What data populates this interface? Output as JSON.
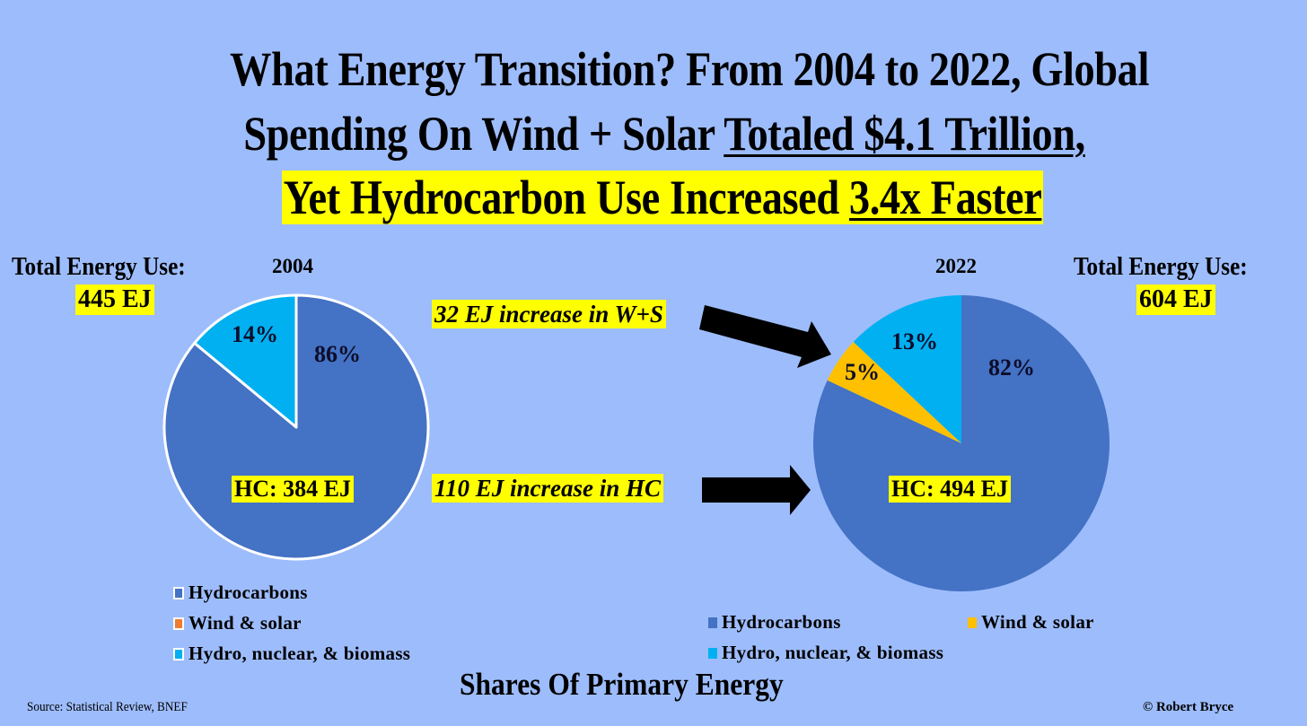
{
  "title": {
    "line1": "What Energy Transition? From 2004 to 2022, Global",
    "line2_plain": "Spending On Wind + Solar ",
    "line2_underlined": "Totaled $4.1 Trillion,",
    "line3_plain": "Yet Hydrocarbon Use Increased ",
    "line3_underlined": "3.4x Faster"
  },
  "left_total": {
    "label": "Total Energy Use:",
    "value": "445 EJ"
  },
  "right_total": {
    "label": "Total Energy Use:",
    "value": "604 EJ"
  },
  "annotations": {
    "ws_increase": "32 EJ increase in W+S",
    "hc_increase": "110 EJ increase in HC"
  },
  "subtitle": "Shares Of Primary Energy",
  "source": "Source: Statistical Review, BNEF",
  "copyright": "© Robert Bryce",
  "colors": {
    "background": "#9dbcfb",
    "hydrocarbons": "#4472c4",
    "wind_solar_2004_legend": "#ed7d31",
    "wind_solar": "#ffc000",
    "hydro_nuclear_biomass": "#00b0f0",
    "highlight": "#ffff00"
  },
  "chart_data": [
    {
      "type": "pie",
      "title": "2004",
      "total_label": "445 EJ",
      "inner_label": "HC: 384 EJ",
      "slices": [
        {
          "name": "Hydrocarbons",
          "value": 86,
          "label": "86%"
        },
        {
          "name": "Wind & solar",
          "value": 0,
          "label": ""
        },
        {
          "name": "Hydro, nuclear, & biomass",
          "value": 14,
          "label": "14%"
        }
      ],
      "legend": [
        "Hydrocarbons",
        "Wind & solar",
        "Hydro, nuclear, & biomass"
      ],
      "legend_placement": "bottom"
    },
    {
      "type": "pie",
      "title": "2022",
      "total_label": "604 EJ",
      "inner_label": "HC: 494 EJ",
      "slices": [
        {
          "name": "Hydrocarbons",
          "value": 82,
          "label": "82%"
        },
        {
          "name": "Wind & solar",
          "value": 5,
          "label": "5%"
        },
        {
          "name": "Hydro, nuclear, & biomass",
          "value": 13,
          "label": "13%"
        }
      ],
      "legend": [
        "Hydrocarbons",
        "Wind & solar",
        "Hydro, nuclear, & biomass"
      ],
      "legend_placement": "bottom"
    }
  ]
}
